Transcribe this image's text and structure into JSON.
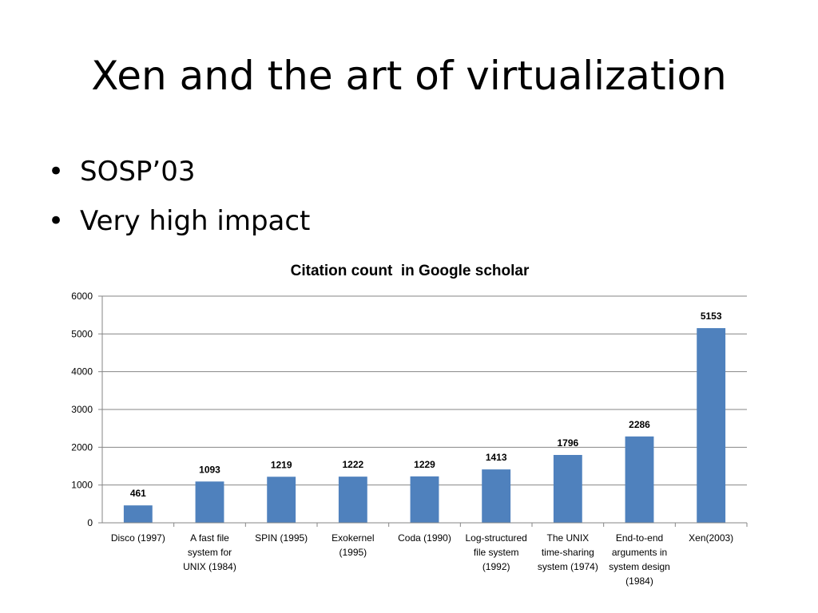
{
  "slide": {
    "title": "Xen and the art of virtualization",
    "bullets": [
      "SOSP’03",
      "Very high impact"
    ]
  },
  "colors": {
    "bar": "#4f81bd",
    "gridline": "#868686",
    "axis": "#868686"
  },
  "chart_data": {
    "type": "bar",
    "title": "Citation count  in Google scholar",
    "xlabel": "",
    "ylabel": "",
    "ylim": [
      0,
      6000
    ],
    "yticks": [
      0,
      1000,
      2000,
      3000,
      4000,
      5000,
      6000
    ],
    "grid": true,
    "legend": "none",
    "categories": [
      [
        "Disco (1997)"
      ],
      [
        "A fast file",
        "system for",
        "UNIX (1984)"
      ],
      [
        "SPIN (1995)"
      ],
      [
        "Exokernel",
        "(1995)"
      ],
      [
        "Coda (1990)"
      ],
      [
        "Log-structured",
        "file system",
        "(1992)"
      ],
      [
        "The UNIX",
        "time-sharing",
        "system (1974)"
      ],
      [
        "End-to-end",
        "arguments in",
        "system design",
        "(1984)"
      ],
      [
        "Xen(2003)"
      ]
    ],
    "values": [
      461,
      1093,
      1219,
      1222,
      1229,
      1413,
      1796,
      2286,
      5153
    ]
  }
}
